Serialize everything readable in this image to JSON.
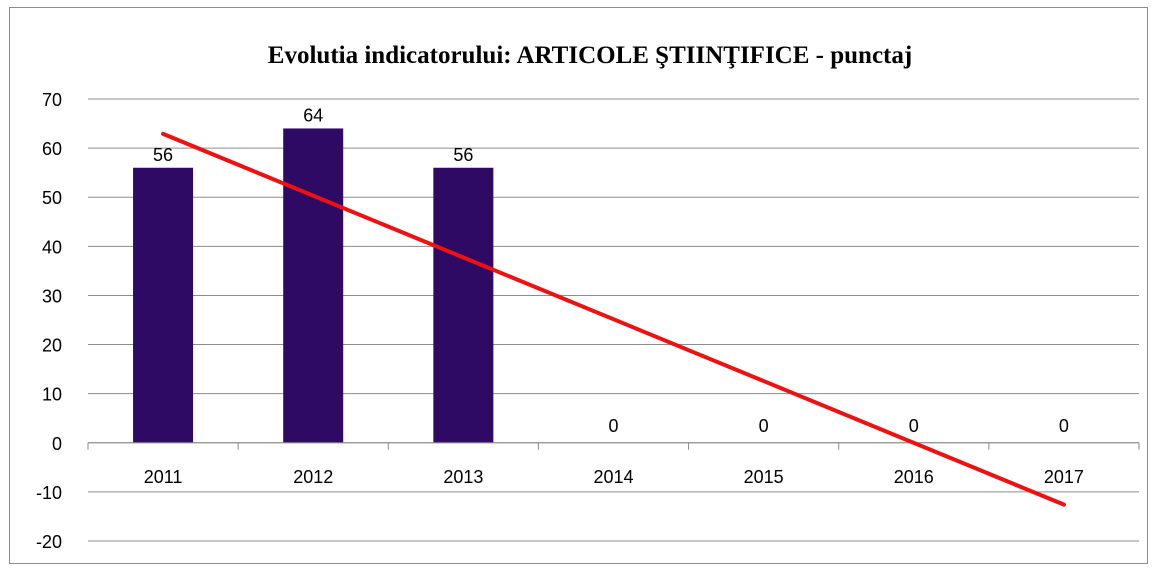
{
  "chart_data": {
    "type": "bar",
    "title": "Evolutia indicatorului: ARTICOLE ŞTIINŢIFICE - punctaj",
    "categories": [
      "2011",
      "2012",
      "2013",
      "2014",
      "2015",
      "2016",
      "2017"
    ],
    "series": [
      {
        "values": [
          56,
          64,
          56,
          0,
          0,
          0,
          0
        ],
        "color": "#2e0a64"
      }
    ],
    "data_labels": [
      "56",
      "64",
      "56",
      "0",
      "0",
      "0",
      "0"
    ],
    "trendline": {
      "type": "linear",
      "color": "#ee1111",
      "start_value": 62.9,
      "end_value": -12.6
    },
    "ylim": [
      -20,
      70
    ],
    "yticks": [
      -20,
      -10,
      0,
      10,
      20,
      30,
      40,
      50,
      60,
      70
    ],
    "grid": true,
    "legend": "none"
  }
}
